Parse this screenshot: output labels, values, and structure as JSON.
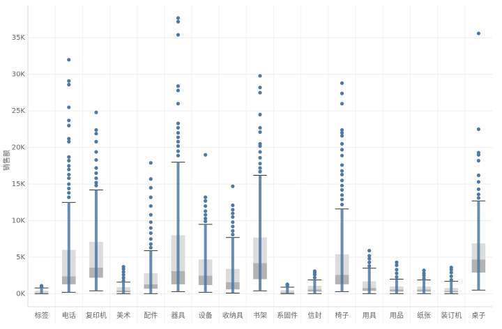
{
  "chart_data": {
    "type": "box",
    "y_label": "销售额",
    "categories": [
      "标签",
      "电话",
      "复印机",
      "美术",
      "配件",
      "器具",
      "设备",
      "收纳具",
      "书架",
      "系固件",
      "信封",
      "椅子",
      "用具",
      "用品",
      "纸张",
      "装订机",
      "桌子"
    ],
    "boxes": [
      {
        "low": 10,
        "q1": 120,
        "median": 200,
        "q3": 400,
        "high": 800,
        "outliers": [
          900,
          1000,
          1100
        ]
      },
      {
        "low": 200,
        "q1": 1300,
        "median": 2400,
        "q3": 6000,
        "high": 12500,
        "outliers": [
          32000,
          29100,
          28600,
          25500,
          23700,
          23000,
          21200,
          20800,
          18700,
          18200,
          17500,
          17000,
          16300,
          15800,
          15000,
          14400,
          13800,
          13200
        ]
      },
      {
        "low": 400,
        "q1": 2200,
        "median": 3600,
        "q3": 7100,
        "high": 14200,
        "outliers": [
          24800,
          22400,
          21900,
          20800,
          19400,
          18300,
          17200,
          16500,
          15800,
          15200,
          14800
        ]
      },
      {
        "low": 10,
        "q1": 200,
        "median": 450,
        "q3": 900,
        "high": 1600,
        "outliers": [
          1800,
          2200,
          2600,
          3000,
          3400,
          3700
        ]
      },
      {
        "low": 20,
        "q1": 700,
        "median": 1300,
        "q3": 2800,
        "high": 5900,
        "outliers": [
          17900,
          15700,
          14500,
          13200,
          12000,
          10800,
          9800,
          9000,
          8300,
          7500,
          6800,
          6300
        ]
      },
      {
        "low": 300,
        "q1": 1300,
        "median": 3100,
        "q3": 8000,
        "high": 18000,
        "outliers": [
          37700,
          37200,
          35400,
          28400,
          27800,
          26000,
          23300,
          22700,
          22000,
          21400,
          20800,
          20200,
          19500,
          18900
        ]
      },
      {
        "low": 200,
        "q1": 1200,
        "median": 2500,
        "q3": 4700,
        "high": 9500,
        "outliers": [
          19000,
          13200,
          12700,
          12000,
          11300,
          10800,
          10300,
          9900
        ]
      },
      {
        "low": 100,
        "q1": 600,
        "median": 1600,
        "q3": 3400,
        "high": 7700,
        "outliers": [
          14700,
          12100,
          11500,
          11000,
          10500,
          9800,
          9200,
          8600,
          8100
        ]
      },
      {
        "low": 400,
        "q1": 2000,
        "median": 4200,
        "q3": 7700,
        "high": 16200,
        "outliers": [
          29800,
          28200,
          27500,
          24500,
          22700,
          22100,
          20500,
          20200,
          19400,
          18600,
          17800,
          17200,
          16700
        ]
      },
      {
        "low": 10,
        "q1": 100,
        "median": 250,
        "q3": 500,
        "high": 900,
        "outliers": [
          1000,
          1200,
          1300
        ]
      },
      {
        "low": 20,
        "q1": 300,
        "median": 600,
        "q3": 1100,
        "high": 1900,
        "outliers": [
          2200,
          2600,
          2900,
          3100
        ]
      },
      {
        "low": 300,
        "q1": 1300,
        "median": 2600,
        "q3": 5400,
        "high": 11600,
        "outliers": [
          28800,
          27400,
          26000,
          22400,
          22000,
          21600,
          20500,
          19700,
          18900,
          17600,
          16800,
          16300,
          15500,
          14800,
          14200,
          13500,
          12900,
          12200
        ]
      },
      {
        "low": 30,
        "q1": 400,
        "median": 800,
        "q3": 1700,
        "high": 3500,
        "outliers": [
          3800,
          4300,
          4800,
          5200,
          5900
        ]
      },
      {
        "low": 20,
        "q1": 300,
        "median": 600,
        "q3": 1000,
        "high": 2000,
        "outliers": [
          2300,
          2800,
          3300,
          3900,
          4300
        ]
      },
      {
        "low": 20,
        "q1": 300,
        "median": 600,
        "q3": 1000,
        "high": 1900,
        "outliers": [
          2100,
          2500,
          2800,
          3200
        ]
      },
      {
        "low": 10,
        "q1": 200,
        "median": 400,
        "q3": 800,
        "high": 1700,
        "outliers": [
          1900,
          2400,
          2900,
          3300,
          3600
        ]
      },
      {
        "low": 500,
        "q1": 2900,
        "median": 4700,
        "q3": 6900,
        "high": 12700,
        "outliers": [
          35600,
          22500,
          19300,
          19000,
          18200,
          16200,
          15300,
          14300,
          13600,
          13100
        ]
      }
    ],
    "point_color": "#4e79a7",
    "upper_box_color": "#dcdcdc",
    "lower_box_color": "#b3b3b3",
    "ylim": [
      -1000,
      39500
    ],
    "yticks": [
      {
        "value": 0,
        "label": "0K"
      },
      {
        "value": 5000,
        "label": "5K"
      },
      {
        "value": 10000,
        "label": "10K"
      },
      {
        "value": 15000,
        "label": "15K"
      },
      {
        "value": 20000,
        "label": "20K"
      },
      {
        "value": 25000,
        "label": "25K"
      },
      {
        "value": 30000,
        "label": "30K"
      },
      {
        "value": 35000,
        "label": "35K"
      }
    ],
    "grid": true
  }
}
